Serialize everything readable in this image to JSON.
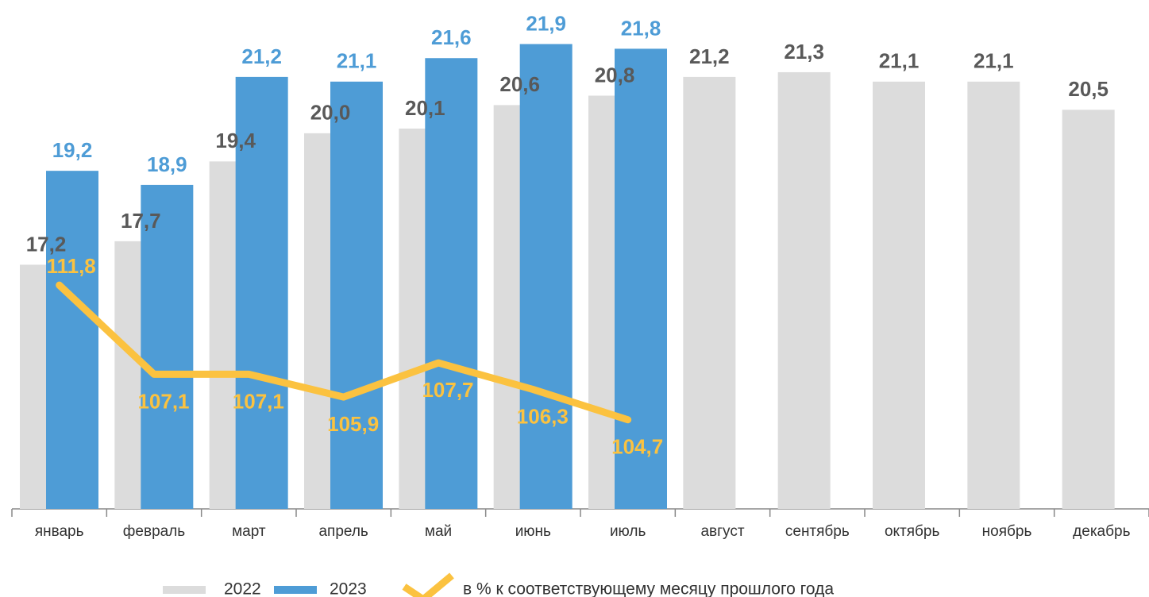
{
  "chart_data": {
    "type": "bar",
    "categories": [
      "январь",
      "февраль",
      "март",
      "апрель",
      "май",
      "июнь",
      "июль",
      "август",
      "сентябрь",
      "октябрь",
      "ноябрь",
      "декабрь"
    ],
    "ylim": [
      12,
      22.5
    ],
    "y2lim": [
      100,
      126
    ],
    "series": [
      {
        "name": "2022",
        "type": "bar",
        "color": "#dcdcdc",
        "label_color": "#595959",
        "values": [
          17.2,
          17.7,
          19.4,
          20.0,
          20.1,
          20.6,
          20.8,
          21.2,
          21.3,
          21.1,
          21.1,
          20.5
        ],
        "value_labels": [
          "17,2",
          "17,7",
          "19,4",
          "20,0",
          "20,1",
          "20,6",
          "20,8",
          "21,2",
          "21,3",
          "21,1",
          "21,1",
          "20,5"
        ]
      },
      {
        "name": "2023",
        "type": "bar",
        "color": "#4e9cd6",
        "label_color": "#4e9cd6",
        "values": [
          19.2,
          18.9,
          21.2,
          21.1,
          21.6,
          21.9,
          21.8,
          null,
          null,
          null,
          null,
          null
        ],
        "value_labels": [
          "19,2",
          "18,9",
          "21,2",
          "21,1",
          "21,6",
          "21,9",
          "21,8",
          null,
          null,
          null,
          null,
          null
        ]
      },
      {
        "name": "в % к соответствующему месяцу прошлого года",
        "type": "line",
        "axis": "y2",
        "color": "#fbc240",
        "label_color": "#fbc240",
        "values": [
          111.8,
          107.1,
          107.1,
          105.9,
          107.7,
          106.3,
          104.7,
          null,
          null,
          null,
          null,
          null
        ],
        "value_labels": [
          "111,8",
          "107,1",
          "107,1",
          "105,9",
          "107,7",
          "106,3",
          "104,7",
          null,
          null,
          null,
          null,
          null
        ]
      }
    ]
  }
}
